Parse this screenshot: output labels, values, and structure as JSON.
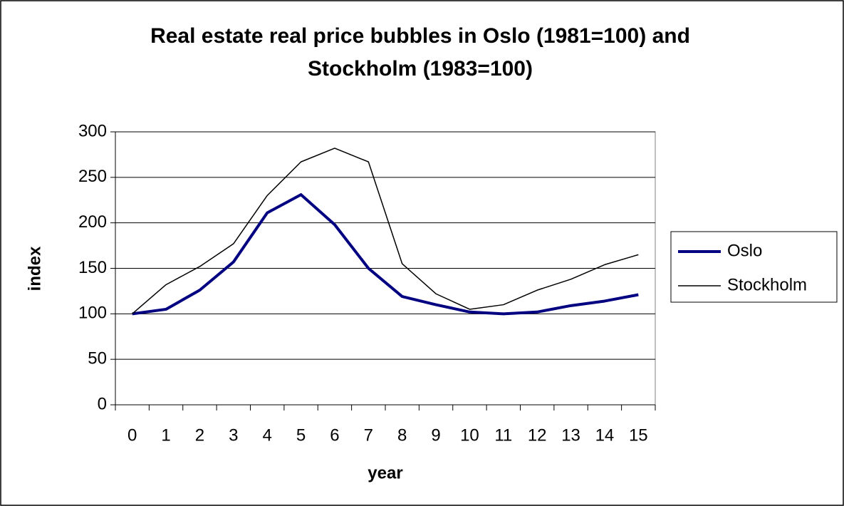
{
  "chart_data": {
    "type": "line",
    "title": "Real estate real price bubbles in Oslo (1981=100) and Stockholm (1983=100)",
    "x_label": "year",
    "y_label": "index",
    "categories": [
      "0",
      "1",
      "2",
      "3",
      "4",
      "5",
      "6",
      "7",
      "8",
      "9",
      "10",
      "11",
      "12",
      "13",
      "14",
      "15"
    ],
    "series": [
      {
        "name": "Oslo",
        "color": "#000080",
        "values": [
          100,
          105,
          126,
          157,
          211,
          231,
          198,
          150,
          119,
          110,
          102,
          100,
          102,
          109,
          114,
          121
        ]
      },
      {
        "name": "Stockholm",
        "color": "#000000",
        "values": [
          100,
          132,
          152,
          177,
          230,
          267,
          282,
          267,
          155,
          122,
          105,
          110,
          126,
          138,
          154,
          165
        ]
      }
    ],
    "ylim": [
      0,
      300
    ],
    "yticks": [
      0,
      50,
      100,
      150,
      200,
      250,
      300
    ],
    "grid": true,
    "legend": "right"
  }
}
